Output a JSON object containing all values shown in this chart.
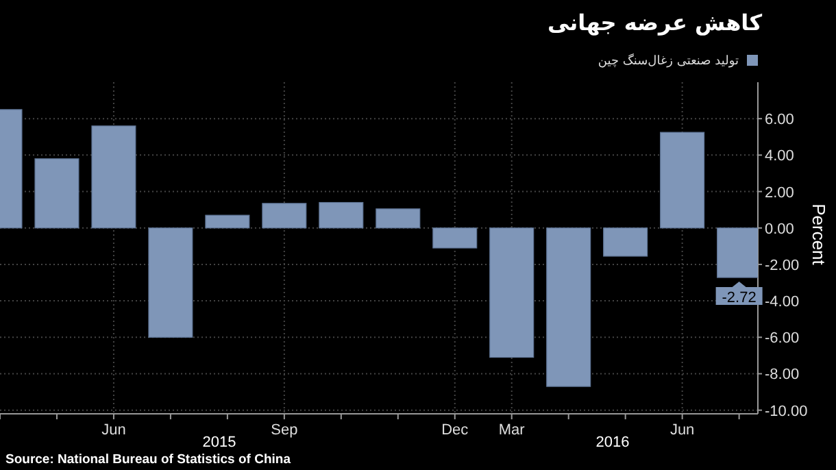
{
  "chart_data": {
    "type": "bar",
    "title": "کاهش عرضه جهانی",
    "ylabel": "Percent",
    "categories": [
      null,
      null,
      "Jun",
      null,
      null,
      "Sep",
      null,
      null,
      "Dec",
      "Mar",
      null,
      null,
      "Jun",
      null
    ],
    "series": [
      {
        "name": "تولید صنعتی زغال‌سنگ چین",
        "color": "#7f96b8",
        "values": [
          6.5,
          3.8,
          5.6,
          -6.0,
          0.7,
          1.35,
          1.4,
          1.05,
          -1.1,
          -7.1,
          -8.7,
          -1.55,
          5.25,
          -2.72
        ],
        "value_labels": [
          null,
          null,
          null,
          null,
          null,
          null,
          null,
          null,
          null,
          null,
          null,
          null,
          null,
          "-2.72"
        ]
      }
    ],
    "ylim": [
      -10.2,
      8
    ],
    "yticks": [
      {
        "value": -10,
        "label": "-10.00"
      },
      {
        "value": -8,
        "label": "-8.00"
      },
      {
        "value": -6,
        "label": "-6.00"
      },
      {
        "value": -4,
        "label": "-4.00"
      },
      {
        "value": -2,
        "label": "-2.00"
      },
      {
        "value": 0,
        "label": "0.00"
      },
      {
        "value": 2,
        "label": "2.00"
      },
      {
        "value": 4,
        "label": "4.00"
      },
      {
        "value": 6,
        "label": "6.00"
      }
    ],
    "grid": true,
    "legend": "top right",
    "annotations": [
      "2015",
      "2016",
      "Source: National Bureau of Statistics of China"
    ]
  }
}
